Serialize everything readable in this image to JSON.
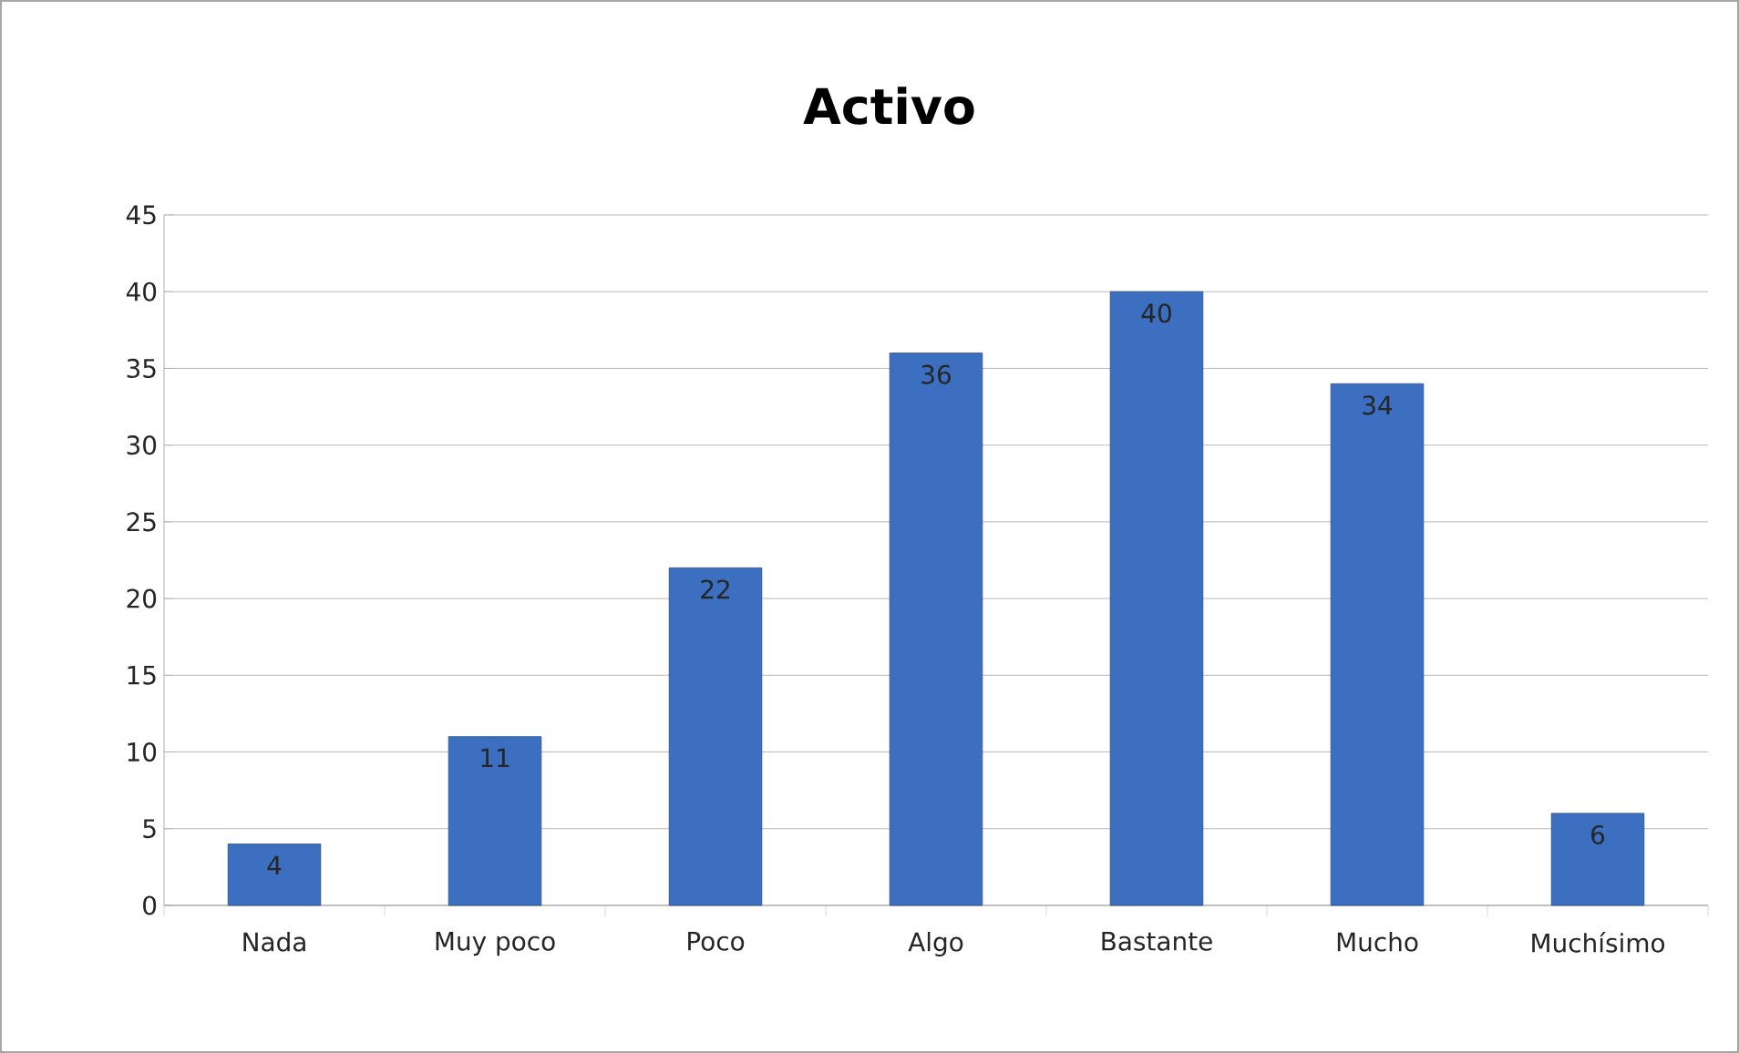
{
  "chart_data": {
    "type": "bar",
    "title": "Activo",
    "categories": [
      "Nada",
      "Muy poco",
      "Poco",
      "Algo",
      "Bastante",
      "Mucho",
      "Muchísimo"
    ],
    "values": [
      4,
      11,
      22,
      36,
      40,
      34,
      6
    ],
    "color": "#3c6fc0",
    "ylim": [
      0,
      45
    ],
    "yticks": [
      0,
      5,
      10,
      15,
      20,
      25,
      30,
      35,
      40,
      45
    ],
    "grid": "y",
    "data_labels": true
  }
}
